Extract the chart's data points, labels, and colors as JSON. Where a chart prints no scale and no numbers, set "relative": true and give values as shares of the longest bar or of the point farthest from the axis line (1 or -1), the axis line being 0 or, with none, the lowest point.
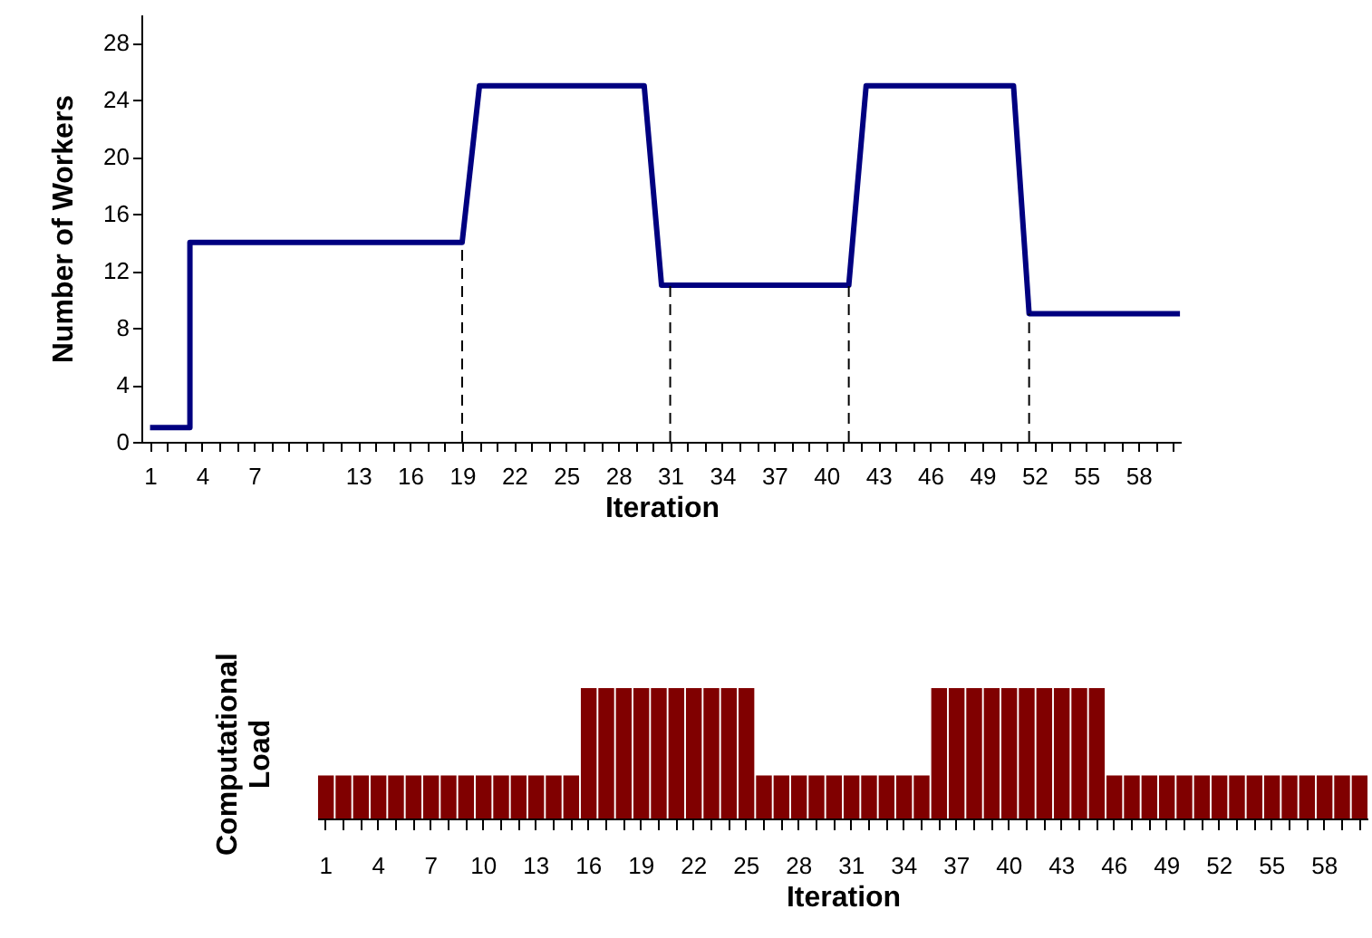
{
  "chart_data": [
    {
      "type": "line",
      "xlabel": "Iteration",
      "ylabel": "Number of Workers",
      "x": [
        1,
        3.3,
        3.3,
        19,
        20,
        29.5,
        30.5,
        41.3,
        42.3,
        50.8,
        51.7,
        60.4
      ],
      "series": [
        {
          "color": "#000080",
          "values": [
            1,
            1,
            14,
            14,
            25,
            25,
            11,
            11,
            25,
            25,
            9,
            9
          ]
        }
      ],
      "xlim": [
        0.5,
        60.5
      ],
      "ylim": [
        0,
        30
      ],
      "yticks": [
        0,
        4,
        8,
        12,
        16,
        20,
        24,
        28
      ],
      "xticks": [
        1,
        {
          "value": 2,
          "label": null
        },
        {
          "value": 3,
          "label": null
        },
        4,
        {
          "value": 5,
          "label": null
        },
        {
          "value": 6,
          "label": null
        },
        7,
        {
          "value": 8,
          "label": null
        },
        {
          "value": 9,
          "label": null
        },
        {
          "value": 10,
          "label": null
        },
        {
          "value": 11,
          "label": null
        },
        {
          "value": 12,
          "label": null
        },
        13,
        {
          "value": 14,
          "label": null
        },
        {
          "value": 15,
          "label": null
        },
        16,
        {
          "value": 17,
          "label": null
        },
        {
          "value": 18,
          "label": null
        },
        19,
        {
          "value": 20,
          "label": null
        },
        {
          "value": 21,
          "label": null
        },
        22,
        {
          "value": 23,
          "label": null
        },
        {
          "value": 24,
          "label": null
        },
        25,
        {
          "value": 26,
          "label": null
        },
        {
          "value": 27,
          "label": null
        },
        28,
        {
          "value": 29,
          "label": null
        },
        {
          "value": 30,
          "label": null
        },
        31,
        {
          "value": 32,
          "label": null
        },
        {
          "value": 33,
          "label": null
        },
        34,
        {
          "value": 35,
          "label": null
        },
        {
          "value": 36,
          "label": null
        },
        37,
        {
          "value": 38,
          "label": null
        },
        {
          "value": 39,
          "label": null
        },
        40,
        {
          "value": 41,
          "label": null
        },
        {
          "value": 42,
          "label": null
        },
        43,
        {
          "value": 44,
          "label": null
        },
        {
          "value": 45,
          "label": null
        },
        46,
        {
          "value": 47,
          "label": null
        },
        {
          "value": 48,
          "label": null
        },
        49,
        {
          "value": 50,
          "label": null
        },
        {
          "value": 51,
          "label": null
        },
        52,
        {
          "value": 53,
          "label": null
        },
        {
          "value": 54,
          "label": null
        },
        55,
        {
          "value": 56,
          "label": null
        },
        {
          "value": 57,
          "label": null
        },
        58,
        {
          "value": 59,
          "label": null
        },
        {
          "value": 60,
          "label": null
        }
      ],
      "ref_lines": [
        {
          "axis": "x",
          "value": 19,
          "line_style": "dashed"
        },
        {
          "axis": "x",
          "value": 31,
          "line_style": "dashed"
        },
        {
          "axis": "x",
          "value": 41.3,
          "line_style": "dashed"
        },
        {
          "axis": "x",
          "value": 51.7,
          "line_style": "dashed"
        }
      ]
    },
    {
      "type": "bar",
      "relative": true,
      "xlabel": "Iteration",
      "ylabel": "Computational Load",
      "color": "#800000",
      "categories": [
        "1",
        null,
        null,
        "4",
        null,
        null,
        "7",
        null,
        null,
        "10",
        null,
        null,
        "13",
        null,
        null,
        "16",
        null,
        null,
        "19",
        null,
        null,
        "22",
        null,
        null,
        "25",
        null,
        null,
        "28",
        null,
        null,
        "31",
        null,
        null,
        "34",
        null,
        null,
        "37",
        null,
        null,
        "40",
        null,
        null,
        "43",
        null,
        null,
        "46",
        null,
        null,
        "49",
        null,
        null,
        "52",
        null,
        null,
        "55",
        null,
        null,
        "58",
        null,
        null
      ],
      "values": [
        0.33,
        0.33,
        0.33,
        0.33,
        0.33,
        0.33,
        0.33,
        0.33,
        0.33,
        0.33,
        0.33,
        0.33,
        0.33,
        0.33,
        0.33,
        1,
        1,
        1,
        1,
        1,
        1,
        1,
        1,
        1,
        1,
        0.33,
        0.33,
        0.33,
        0.33,
        0.33,
        0.33,
        0.33,
        0.33,
        0.33,
        0.33,
        1,
        1,
        1,
        1,
        1,
        1,
        1,
        1,
        1,
        1,
        0.33,
        0.33,
        0.33,
        0.33,
        0.33,
        0.33,
        0.33,
        0.33,
        0.33,
        0.33,
        0.33,
        0.33,
        0.33,
        0.33,
        0.33
      ]
    }
  ]
}
